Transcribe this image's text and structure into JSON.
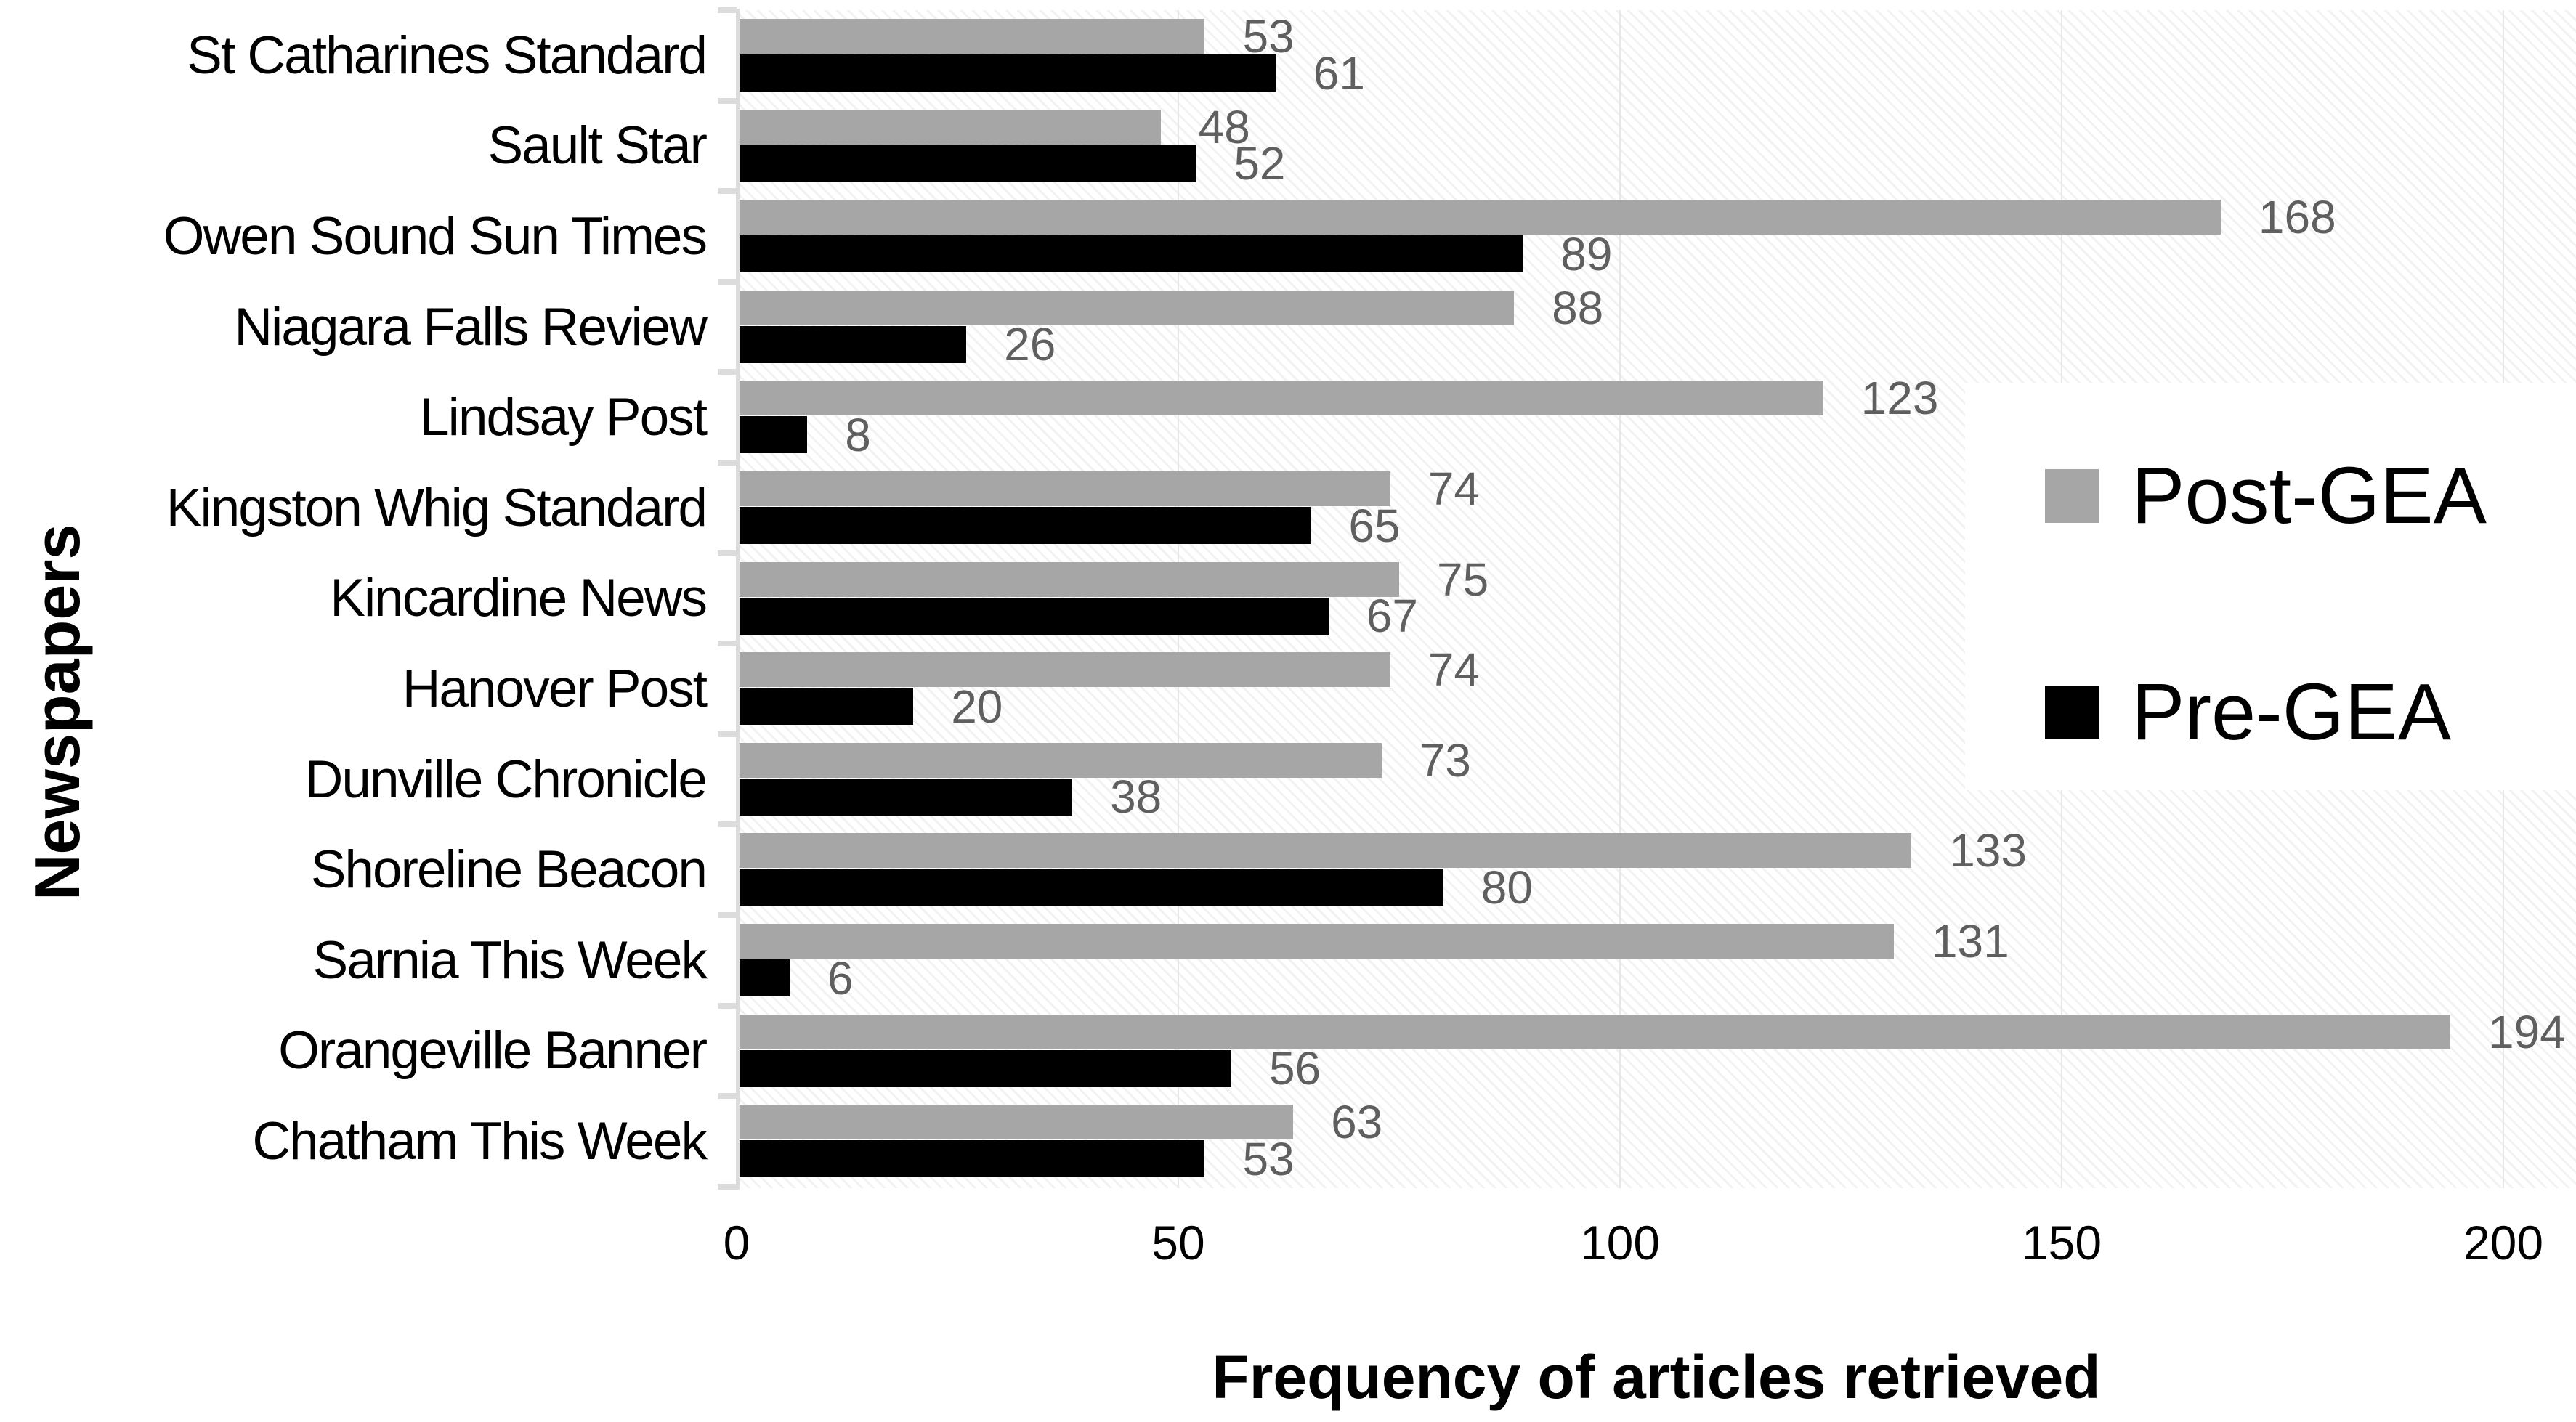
{
  "chart_data": {
    "type": "bar",
    "orientation": "horizontal",
    "categories": [
      "St Catharines Standard",
      "Sault Star",
      "Owen Sound Sun Times",
      "Niagara Falls Review",
      "Lindsay Post",
      "Kingston Whig Standard",
      "Kincardine News",
      "Hanover Post",
      "Dunville Chronicle",
      "Shoreline Beacon",
      "Sarnia This Week",
      "Orangeville Banner",
      "Chatham This Week"
    ],
    "series": [
      {
        "name": "Post-GEA",
        "color": "#a6a6a6",
        "values": [
          53,
          48,
          168,
          88,
          123,
          74,
          75,
          74,
          73,
          133,
          131,
          194,
          63
        ]
      },
      {
        "name": "Pre-GEA",
        "color": "#000000",
        "values": [
          61,
          52,
          89,
          26,
          8,
          65,
          67,
          20,
          38,
          80,
          6,
          56,
          53
        ]
      }
    ],
    "xlabel": "Frequency of articles retrieved",
    "ylabel": "Newspapers",
    "xlim": [
      0,
      200
    ],
    "xticks": [
      "0",
      "50",
      "100",
      "150",
      "200"
    ],
    "grid": "vertical major gridlines, light gray",
    "legend_position": "middle-right, white box",
    "data_labels": "shown at end of each bar, gray"
  },
  "style": {
    "post_bar_color": "#a6a6a6",
    "pre_bar_color": "#000000",
    "data_label_color": "#5f5f5f",
    "axis_color": "#dcdcdc",
    "gridline_color": "#e7e7e7",
    "plot_background": "white with faint diagonal hatch"
  }
}
